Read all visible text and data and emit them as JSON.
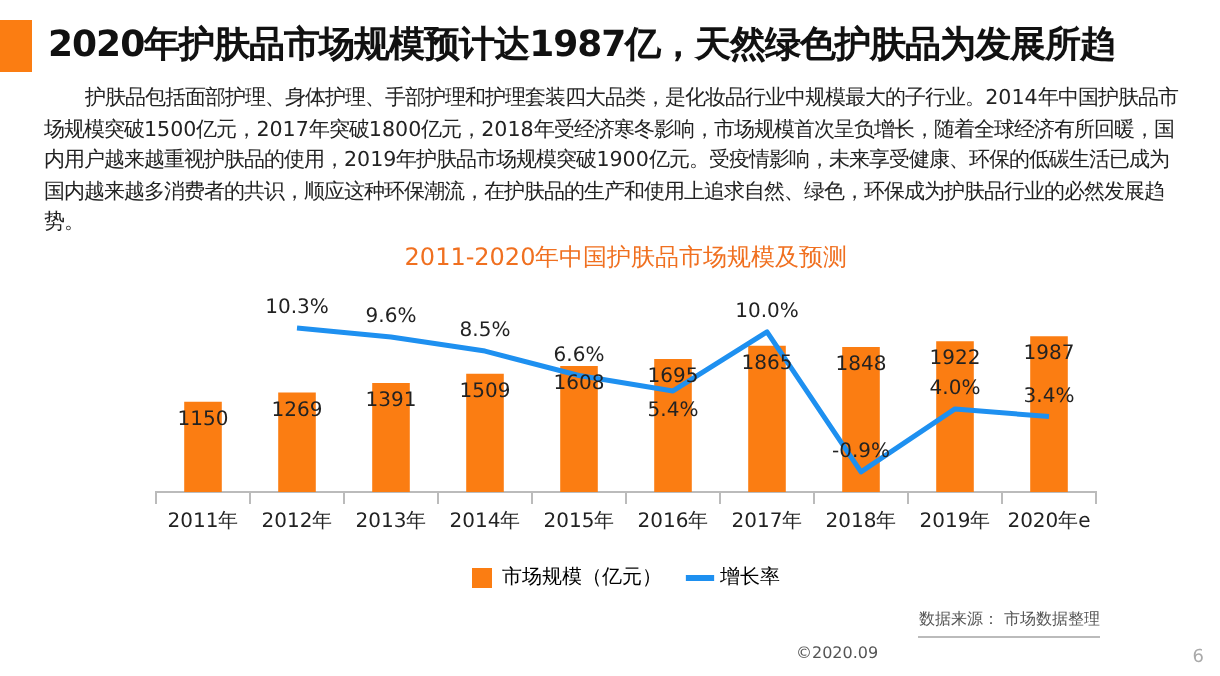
{
  "chart_data": {
    "type": "bar",
    "title": "2020年护肤品市场规模预计达1987亿，天然绿色护肤品为发展所趋",
    "subtitle": "2011-2020年中国护肤品市场规模及预测",
    "categories": [
      "2011年",
      "2012年",
      "2013年",
      "2014年",
      "2015年",
      "2016年",
      "2017年",
      "2018年",
      "2019年",
      "2020年e"
    ],
    "series": [
      {
        "name": "市场规模（亿元）",
        "color": "#fb7d12",
        "values": [
          1150,
          1269,
          1391,
          1509,
          1608,
          1695,
          1865,
          1848,
          1922,
          1987
        ]
      },
      {
        "name": "增长率",
        "type": "line",
        "axis": "y2",
        "color": "#1e90f0",
        "values": [
          null,
          10.3,
          9.6,
          8.5,
          6.6,
          5.4,
          10.0,
          -0.9,
          4.0,
          3.4
        ],
        "value_labels": [
          null,
          "10.3%",
          "9.6%",
          "8.5%",
          "6.6%",
          "5.4%",
          "10.0%",
          "-0.9%",
          "4.0%",
          "3.4%"
        ]
      }
    ],
    "data_labels": true,
    "tick_labels": "x",
    "legend": "bottom",
    "marker": "none",
    "line_style": "solid",
    "grid": false,
    "annotations": [
      "护肤品包括面部护理、身体护理、手部护理和护理套装四大品类，是化妆品行业中规模最大的子行业。2014年中国护肤品市场规模突破1500亿元，2017年突破1800亿元，2018年受经济寒冬影响，市场规模首次呈负增长，随着全球经济有所回暖，国内用户越来越重视护肤品的使用，2019年护肤品市场规模突破1900亿元。受疫情影响，未来享受健康、环保的低碳生活已成为国内越来越多消费者的共识，顺应这种环保潮流，在护肤品的生产和使用上追求自然、绿色，环保成为护肤品行业的必然发展趋势。",
      "数据来源： 市场数据整理",
      "©2020.09",
      "6"
    ]
  }
}
